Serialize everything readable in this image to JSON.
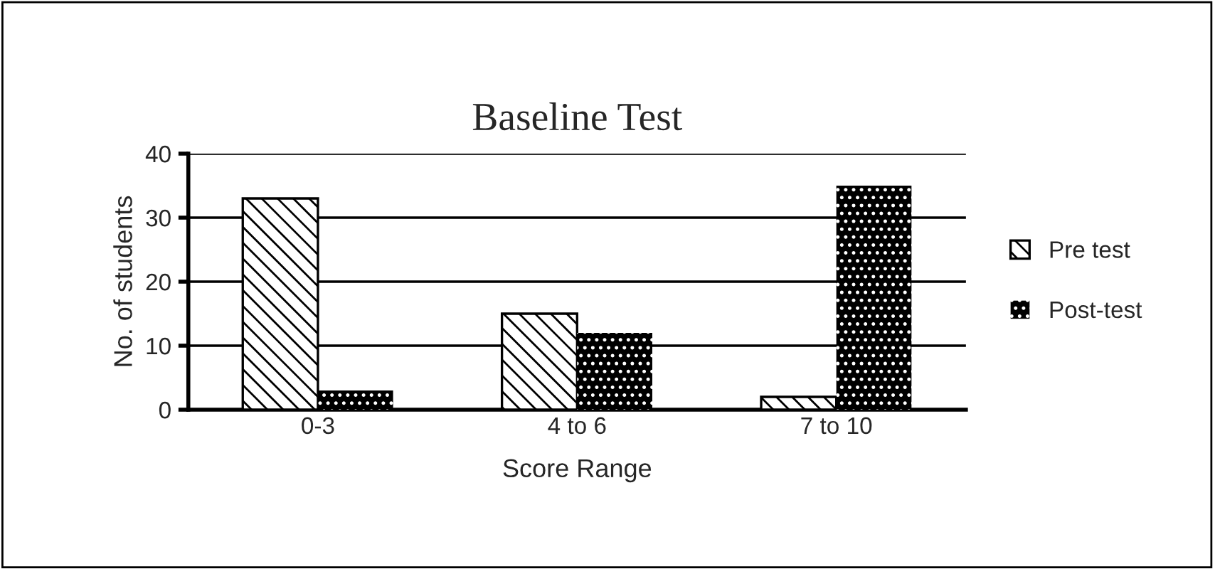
{
  "chart_data": {
    "type": "bar",
    "title": "Baseline Test",
    "xlabel": "Score Range",
    "ylabel": "No. of students",
    "categories": [
      "0-3",
      "4 to 6",
      "7 to 10"
    ],
    "series": [
      {
        "name": "Pre test",
        "color": "#000000",
        "values": [
          33,
          15,
          2
        ]
      },
      {
        "name": "Post-test",
        "color": "#000000",
        "values": [
          3,
          12,
          35
        ]
      }
    ],
    "ylim": [
      0,
      40
    ],
    "yticks": [
      0,
      10,
      20,
      30,
      40
    ],
    "grid": "y",
    "legend": "right"
  }
}
